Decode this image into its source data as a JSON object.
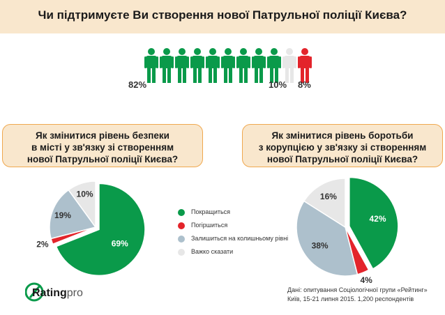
{
  "header": {
    "title": "Чи підтримуєте Ви створення нової Патрульної поліції Києва?"
  },
  "people_chart": {
    "labels": {
      "support": "82%",
      "neutral": "10%",
      "against": "8%"
    },
    "counts": {
      "support": 9,
      "neutral": 1,
      "against": 1
    }
  },
  "chart_data": [
    {
      "type": "pie",
      "title": "Як змінитися рівень безпеки\nв місті у зв'язку зі створенням\nнової Патрульної поліції Києва?",
      "labels": [
        "Покращиться",
        "Погіршиться",
        "Залишиться на колишньому рівні",
        "Важко сказати"
      ],
      "values": [
        69,
        2,
        19,
        10
      ],
      "value_labels": [
        "69%",
        "2%",
        "19%",
        "10%"
      ]
    },
    {
      "type": "pie",
      "title": "Як змінитися рівень боротьби\nз корупцією у зв'язку зі створенням\nнової Патрульної поліції Києва?",
      "labels": [
        "Покращиться",
        "Погіршиться",
        "Залишиться на колишньому рівні",
        "Важко сказати"
      ],
      "values": [
        42,
        4,
        38,
        16
      ],
      "value_labels": [
        "42%",
        "4%",
        "38%",
        "16%"
      ]
    }
  ],
  "legend": [
    {
      "label": "Покращиться",
      "color": "#0a9a4a"
    },
    {
      "label": "Погіршиться",
      "color": "#e3242b"
    },
    {
      "label": "Залишиться на колишньому рівні",
      "color": "#adc0cc"
    },
    {
      "label": "Важко сказати",
      "color": "#e7e7e7"
    }
  ],
  "logo": {
    "main": "Rating",
    "suffix": "pro",
    "icon": "rating-pro-logo-icon"
  },
  "source": "Дані: опитування Соціологічної групи «Рейтинг»\nКиїв, 15-21 липня 2015. 1,200 респондентів"
}
